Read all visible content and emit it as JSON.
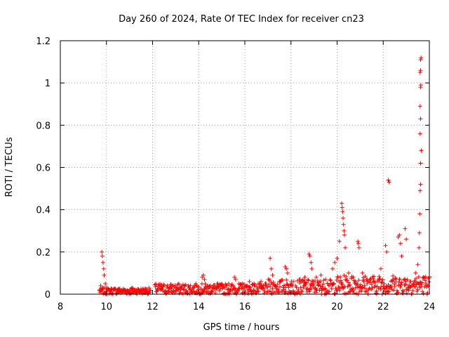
{
  "chart_data": {
    "type": "scatter",
    "title": "Day 260 of 2024, Rate Of TEC Index for receiver cn23",
    "xlabel": "GPS time / hours",
    "ylabel": "ROTI / TECUs",
    "xlim": [
      8,
      24
    ],
    "ylim": [
      0,
      1.2
    ],
    "xticks": [
      8,
      10,
      12,
      14,
      16,
      18,
      20,
      22,
      24
    ],
    "yticks": [
      0,
      0.2,
      0.4,
      0.6,
      0.8,
      1,
      1.2
    ],
    "grid": true,
    "marker": "+",
    "color": "#ff0000",
    "series": [
      {
        "name": "ROTI",
        "points": [
          [
            9.7,
            0.02
          ],
          [
            9.75,
            0.04
          ],
          [
            9.8,
            0.2
          ],
          [
            9.82,
            0.18
          ],
          [
            9.85,
            0.15
          ],
          [
            9.88,
            0.12
          ],
          [
            9.9,
            0.09
          ],
          [
            9.95,
            0.05
          ],
          [
            10.0,
            0.03
          ],
          [
            10.2,
            0.02
          ],
          [
            10.5,
            0.025
          ],
          [
            10.8,
            0.02
          ],
          [
            11.1,
            0.03
          ],
          [
            11.4,
            0.02
          ],
          [
            11.7,
            0.025
          ],
          [
            12.2,
            0.02
          ],
          [
            12.4,
            0.035
          ],
          [
            12.8,
            0.025
          ],
          [
            13.2,
            0.02
          ],
          [
            13.6,
            0.03
          ],
          [
            13.9,
            0.04
          ],
          [
            14.15,
            0.08
          ],
          [
            14.2,
            0.09
          ],
          [
            14.25,
            0.07
          ],
          [
            14.5,
            0.04
          ],
          [
            14.8,
            0.05
          ],
          [
            15.0,
            0.04
          ],
          [
            15.3,
            0.05
          ],
          [
            15.55,
            0.08
          ],
          [
            15.6,
            0.07
          ],
          [
            15.9,
            0.05
          ],
          [
            16.2,
            0.06
          ],
          [
            16.4,
            0.05
          ],
          [
            16.7,
            0.06
          ],
          [
            16.9,
            0.05
          ],
          [
            17.1,
            0.17
          ],
          [
            17.15,
            0.12
          ],
          [
            17.2,
            0.09
          ],
          [
            17.5,
            0.06
          ],
          [
            17.75,
            0.13
          ],
          [
            17.8,
            0.12
          ],
          [
            17.85,
            0.1
          ],
          [
            18.1,
            0.06
          ],
          [
            18.4,
            0.07
          ],
          [
            18.6,
            0.08
          ],
          [
            18.78,
            0.19
          ],
          [
            18.82,
            0.18
          ],
          [
            18.87,
            0.15
          ],
          [
            18.9,
            0.12
          ],
          [
            19.1,
            0.08
          ],
          [
            19.3,
            0.09
          ],
          [
            19.5,
            0.07
          ],
          [
            19.8,
            0.12
          ],
          [
            19.9,
            0.15
          ],
          [
            20.0,
            0.17
          ],
          [
            20.1,
            0.25
          ],
          [
            20.2,
            0.43
          ],
          [
            20.22,
            0.41
          ],
          [
            20.24,
            0.39
          ],
          [
            20.26,
            0.36
          ],
          [
            20.28,
            0.33
          ],
          [
            20.3,
            0.3
          ],
          [
            20.32,
            0.28
          ],
          [
            20.35,
            0.22
          ],
          [
            20.5,
            0.1
          ],
          [
            20.7,
            0.08
          ],
          [
            20.9,
            0.25
          ],
          [
            20.92,
            0.24
          ],
          [
            20.95,
            0.22
          ],
          [
            21.1,
            0.1
          ],
          [
            21.3,
            0.07
          ],
          [
            21.6,
            0.06
          ],
          [
            21.9,
            0.12
          ],
          [
            22.1,
            0.23
          ],
          [
            22.15,
            0.2
          ],
          [
            22.22,
            0.54
          ],
          [
            22.25,
            0.53
          ],
          [
            22.4,
            0.06
          ],
          [
            22.65,
            0.27
          ],
          [
            22.7,
            0.28
          ],
          [
            22.75,
            0.24
          ],
          [
            22.8,
            0.18
          ],
          [
            22.95,
            0.31
          ],
          [
            23.0,
            0.26
          ],
          [
            23.2,
            0.06
          ],
          [
            23.4,
            0.1
          ],
          [
            23.5,
            0.14
          ],
          [
            23.55,
            0.22
          ],
          [
            23.57,
            0.29
          ],
          [
            23.58,
            0.38
          ],
          [
            23.6,
            0.49
          ],
          [
            23.62,
            0.62
          ],
          [
            23.65,
            0.68
          ],
          [
            23.62,
            0.52
          ],
          [
            23.6,
            0.76
          ],
          [
            23.62,
            0.83
          ],
          [
            23.6,
            0.89
          ],
          [
            23.62,
            0.98
          ],
          [
            23.63,
            0.99
          ],
          [
            23.6,
            1.05
          ],
          [
            23.62,
            1.06
          ],
          [
            23.62,
            1.11
          ],
          [
            23.64,
            1.12
          ],
          [
            23.75,
            0.08
          ],
          [
            23.85,
            0.05
          ],
          [
            23.95,
            0.04
          ]
        ]
      }
    ]
  }
}
